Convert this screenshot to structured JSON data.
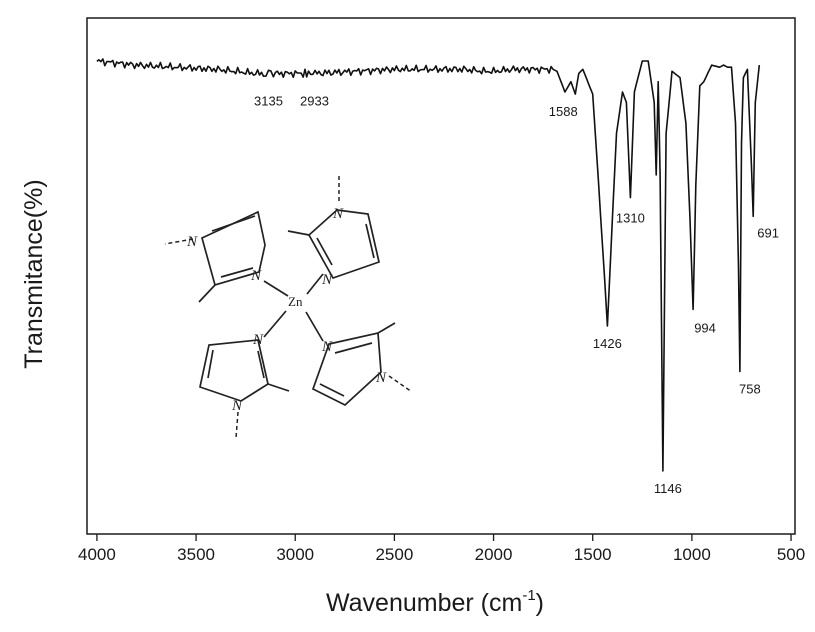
{
  "chart_data": {
    "type": "line",
    "xlabel": "Wavenumber (cm",
    "xlabel_superscript": "-1",
    "xlabel_close": ")",
    "ylabel": "Transmitance(%)",
    "xlim": [
      4050,
      480
    ],
    "x_reversed": true,
    "y_ticks_shown": false,
    "grid": false,
    "x_ticks": [
      "4000",
      "3500",
      "3000",
      "2500",
      "2000",
      "1500",
      "1000",
      "500"
    ],
    "line_color": "#111111",
    "series": [
      {
        "x": [
          4000,
          3800,
          3600,
          3400,
          3200,
          3160,
          3135,
          3110,
          3050,
          2960,
          2933,
          2900,
          2700,
          2500,
          2300,
          2150,
          2050,
          2000,
          1900,
          1800,
          1700,
          1680,
          1640,
          1610,
          1588,
          1570,
          1550,
          1500,
          1470,
          1440,
          1426,
          1410,
          1380,
          1350,
          1330,
          1310,
          1290,
          1250,
          1220,
          1190,
          1180,
          1170,
          1160,
          1146,
          1130,
          1100,
          1060,
          1030,
          1010,
          994,
          980,
          960,
          940,
          900,
          860,
          840,
          820,
          800,
          780,
          765,
          758,
          750,
          740,
          720,
          700,
          691,
          680,
          660
        ],
        "t": [
          0.0,
          0.02,
          0.03,
          0.04,
          0.06,
          0.06,
          0.06,
          0.06,
          0.06,
          0.06,
          0.06,
          0.06,
          0.05,
          0.04,
          0.04,
          0.04,
          0.05,
          0.05,
          0.04,
          0.04,
          0.04,
          0.05,
          0.15,
          0.1,
          0.16,
          0.06,
          0.04,
          0.16,
          0.6,
          1.05,
          1.28,
          0.95,
          0.35,
          0.15,
          0.2,
          0.66,
          0.15,
          0.0,
          0.0,
          0.2,
          0.55,
          0.1,
          0.55,
          1.98,
          0.35,
          0.05,
          0.08,
          0.3,
          0.75,
          1.2,
          0.6,
          0.12,
          0.1,
          0.02,
          0.03,
          0.02,
          0.03,
          0.03,
          0.3,
          1.0,
          1.5,
          0.4,
          0.08,
          0.04,
          0.5,
          0.75,
          0.2,
          0.02
        ]
      }
    ],
    "peaks": [
      {
        "x": 3135,
        "label": "3135"
      },
      {
        "x": 2933,
        "label": "2933"
      },
      {
        "x": 1588,
        "label": "1588"
      },
      {
        "x": 1426,
        "label": "1426"
      },
      {
        "x": 1310,
        "label": "1310"
      },
      {
        "x": 1146,
        "label": "1146"
      },
      {
        "x": 994,
        "label": "994"
      },
      {
        "x": 758,
        "label": "758"
      },
      {
        "x": 691,
        "label": "691"
      }
    ]
  },
  "structure": {
    "center_atom": "Zn",
    "ring_atom": "N"
  }
}
